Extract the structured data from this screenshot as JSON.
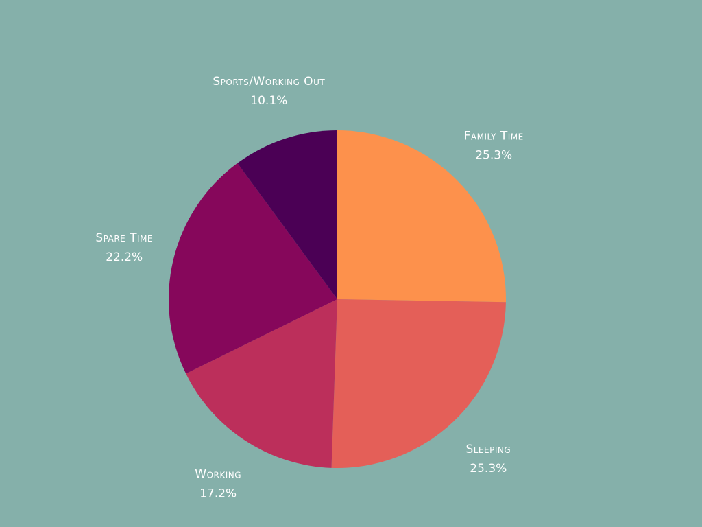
{
  "chart_data": {
    "type": "pie",
    "title": "",
    "start_angle_deg": 0,
    "direction": "clockwise",
    "legend": "none",
    "slices": [
      {
        "label": "Family Time",
        "value": 25.3,
        "value_label": "25.3%",
        "color": "#fd914c"
      },
      {
        "label": "Sleeping",
        "value": 25.3,
        "value_label": "25.3%",
        "color": "#e45f58"
      },
      {
        "label": "Working",
        "value": 17.2,
        "value_label": "17.2%",
        "color": "#bc2f5b"
      },
      {
        "label": "Spare Time",
        "value": 22.2,
        "value_label": "22.2%",
        "color": "#86075b"
      },
      {
        "label": "Sports/Working Out",
        "value": 10.1,
        "value_label": "10.1%",
        "color": "#4b0055"
      }
    ]
  }
}
